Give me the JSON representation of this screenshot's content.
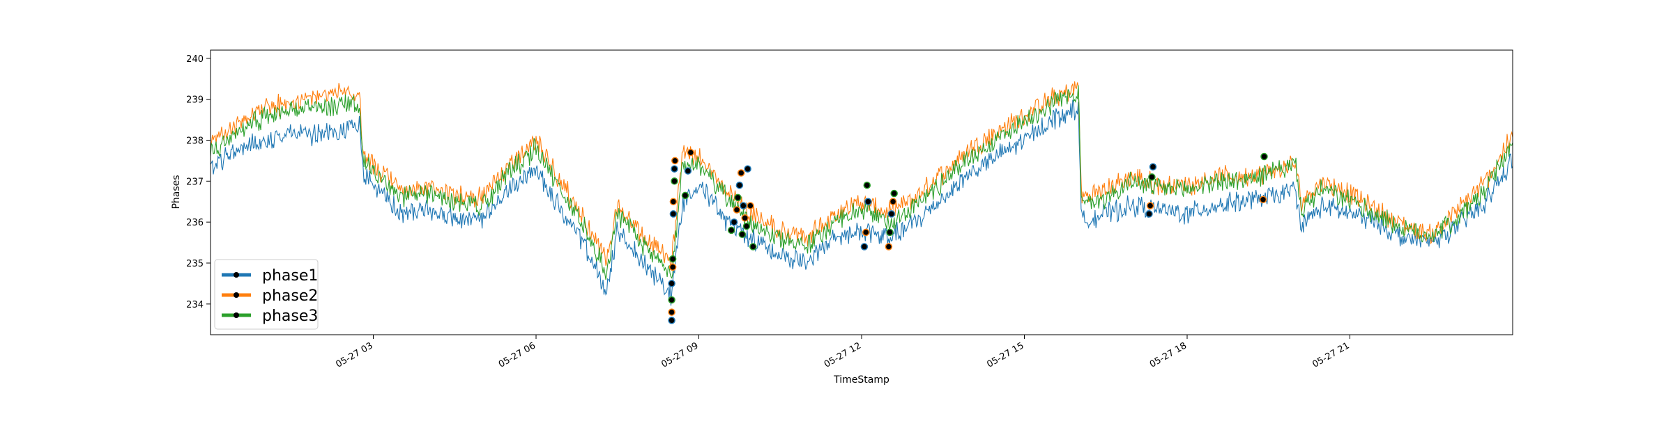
{
  "chart_data": {
    "type": "line",
    "title": "",
    "xlabel": "TimeStamp",
    "ylabel": "Phases",
    "x_range_hours": [
      0,
      24
    ],
    "x_tick_values_hours": [
      3,
      6,
      9,
      12,
      15,
      18,
      21
    ],
    "xticks": [
      "05-27 03",
      "05-27 06",
      "05-27 09",
      "05-27 12",
      "05-27 15",
      "05-27 18",
      "05-27 21"
    ],
    "yticks": [
      "234",
      "235",
      "236",
      "237",
      "238",
      "239",
      "240"
    ],
    "y_tick_values": [
      234,
      235,
      236,
      237,
      238,
      239,
      240
    ],
    "ylim": [
      233.25,
      240.2
    ],
    "grid": false,
    "legend_position": "lower-left",
    "series": [
      {
        "name": "phase1",
        "color": "#1f77b4",
        "x": [
          0,
          0.5,
          1,
          1.5,
          2,
          2.5,
          2.75,
          2.8,
          3.5,
          4,
          4.5,
          5,
          5.5,
          6,
          6.5,
          7,
          7.3,
          7.5,
          8,
          8.5,
          8.7,
          9,
          9.5,
          10,
          10.5,
          11,
          11.5,
          12,
          12.5,
          13,
          13.5,
          14,
          14.5,
          15,
          15.5,
          16,
          16.05,
          16.5,
          17,
          17.5,
          18,
          18.5,
          19,
          19.5,
          20,
          20.1,
          20.5,
          21,
          21.5,
          22,
          22.5,
          23,
          23.5,
          24
        ],
        "y": [
          237.3,
          237.8,
          238.0,
          238.2,
          238.1,
          238.3,
          238.4,
          237.2,
          236.2,
          236.3,
          236.1,
          236.0,
          236.8,
          237.3,
          236.2,
          235.2,
          234.2,
          235.8,
          235.0,
          234.2,
          236.5,
          237.0,
          236.0,
          235.6,
          235.2,
          235.0,
          235.6,
          235.8,
          235.6,
          236.0,
          236.6,
          237.2,
          237.6,
          238.0,
          238.5,
          238.8,
          236.0,
          236.2,
          236.4,
          236.3,
          236.2,
          236.4,
          236.5,
          236.6,
          236.8,
          235.9,
          236.4,
          236.2,
          236.0,
          235.6,
          235.5,
          235.9,
          236.5,
          237.5
        ]
      },
      {
        "name": "phase2",
        "color": "#ff7f0e",
        "x": [
          0,
          0.5,
          1,
          1.5,
          2,
          2.5,
          2.75,
          2.8,
          3.5,
          4,
          4.5,
          5,
          5.5,
          6,
          6.5,
          7,
          7.3,
          7.5,
          8,
          8.5,
          8.7,
          9,
          9.5,
          10,
          10.5,
          11,
          11.5,
          12,
          12.5,
          13,
          13.5,
          14,
          14.5,
          15,
          15.5,
          16,
          16.05,
          16.5,
          17,
          17.5,
          18,
          18.5,
          19,
          19.5,
          20,
          20.1,
          20.5,
          21,
          21.5,
          22,
          22.5,
          23,
          23.5,
          24
        ],
        "y": [
          237.9,
          238.4,
          238.8,
          238.9,
          239.1,
          239.2,
          239.1,
          237.6,
          236.8,
          236.8,
          236.7,
          236.6,
          237.4,
          238.0,
          236.9,
          235.8,
          235.0,
          236.4,
          235.6,
          235.0,
          237.8,
          237.6,
          236.8,
          236.2,
          235.8,
          235.6,
          236.2,
          236.5,
          236.2,
          236.6,
          237.2,
          237.8,
          238.2,
          238.6,
          239.0,
          239.3,
          236.6,
          236.8,
          237.1,
          236.9,
          236.9,
          237.1,
          237.1,
          237.2,
          237.4,
          236.5,
          237.0,
          236.7,
          236.3,
          235.9,
          235.7,
          236.3,
          237.0,
          238.1
        ]
      },
      {
        "name": "phase3",
        "color": "#2ca02c",
        "x": [
          0,
          0.5,
          1,
          1.5,
          2,
          2.5,
          2.75,
          2.8,
          3.5,
          4,
          4.5,
          5,
          5.5,
          6,
          6.5,
          7,
          7.3,
          7.5,
          8,
          8.5,
          8.7,
          9,
          9.5,
          10,
          10.5,
          11,
          11.5,
          12,
          12.5,
          13,
          13.5,
          14,
          14.5,
          15,
          15.5,
          16,
          16.05,
          16.5,
          17,
          17.5,
          18,
          18.5,
          19,
          19.5,
          20,
          20.1,
          20.5,
          21,
          21.5,
          22,
          22.5,
          23,
          23.5,
          24
        ],
        "y": [
          237.7,
          238.2,
          238.6,
          238.7,
          238.8,
          238.9,
          238.8,
          237.5,
          236.6,
          236.7,
          236.5,
          236.4,
          237.2,
          237.8,
          236.7,
          235.6,
          234.8,
          236.2,
          235.4,
          234.7,
          237.4,
          237.4,
          236.6,
          236.0,
          235.6,
          235.4,
          236.0,
          236.3,
          236.0,
          236.4,
          237.0,
          237.6,
          238.0,
          238.5,
          238.9,
          239.2,
          236.4,
          236.6,
          237.0,
          236.8,
          236.8,
          237.0,
          237.0,
          237.2,
          237.4,
          236.3,
          236.8,
          236.5,
          236.2,
          235.8,
          235.7,
          236.1,
          236.8,
          237.9
        ]
      }
    ],
    "anomaly_markers": {
      "color": "#000000",
      "points": [
        {
          "x": 8.5,
          "y": 233.6
        },
        {
          "x": 8.5,
          "y": 233.8
        },
        {
          "x": 8.5,
          "y": 234.1
        },
        {
          "x": 8.5,
          "y": 234.5
        },
        {
          "x": 8.52,
          "y": 234.9
        },
        {
          "x": 8.52,
          "y": 235.1
        },
        {
          "x": 8.53,
          "y": 236.2
        },
        {
          "x": 8.53,
          "y": 236.5
        },
        {
          "x": 8.55,
          "y": 237.0
        },
        {
          "x": 8.55,
          "y": 237.3
        },
        {
          "x": 8.56,
          "y": 237.5
        },
        {
          "x": 8.75,
          "y": 236.65
        },
        {
          "x": 8.8,
          "y": 237.25
        },
        {
          "x": 8.85,
          "y": 237.7
        },
        {
          "x": 9.6,
          "y": 235.8
        },
        {
          "x": 9.65,
          "y": 236.0
        },
        {
          "x": 9.7,
          "y": 236.3
        },
        {
          "x": 9.72,
          "y": 236.6
        },
        {
          "x": 9.75,
          "y": 236.9
        },
        {
          "x": 9.78,
          "y": 237.2
        },
        {
          "x": 9.8,
          "y": 235.7
        },
        {
          "x": 9.82,
          "y": 236.4
        },
        {
          "x": 9.85,
          "y": 236.1
        },
        {
          "x": 9.88,
          "y": 235.9
        },
        {
          "x": 9.9,
          "y": 237.3
        },
        {
          "x": 9.95,
          "y": 236.4
        },
        {
          "x": 10.0,
          "y": 235.4
        },
        {
          "x": 12.05,
          "y": 235.4
        },
        {
          "x": 12.08,
          "y": 235.75
        },
        {
          "x": 12.1,
          "y": 236.9
        },
        {
          "x": 12.12,
          "y": 236.5
        },
        {
          "x": 12.5,
          "y": 235.4
        },
        {
          "x": 12.52,
          "y": 235.75
        },
        {
          "x": 12.55,
          "y": 236.2
        },
        {
          "x": 12.58,
          "y": 236.5
        },
        {
          "x": 12.6,
          "y": 236.7
        },
        {
          "x": 17.3,
          "y": 236.2
        },
        {
          "x": 17.32,
          "y": 236.4
        },
        {
          "x": 17.35,
          "y": 237.1
        },
        {
          "x": 17.37,
          "y": 237.35
        },
        {
          "x": 19.4,
          "y": 236.55
        },
        {
          "x": 19.42,
          "y": 237.6
        }
      ]
    }
  },
  "legend": {
    "entries": [
      {
        "label": "phase1",
        "color": "#1f77b4"
      },
      {
        "label": "phase2",
        "color": "#ff7f0e"
      },
      {
        "label": "phase3",
        "color": "#2ca02c"
      }
    ]
  }
}
